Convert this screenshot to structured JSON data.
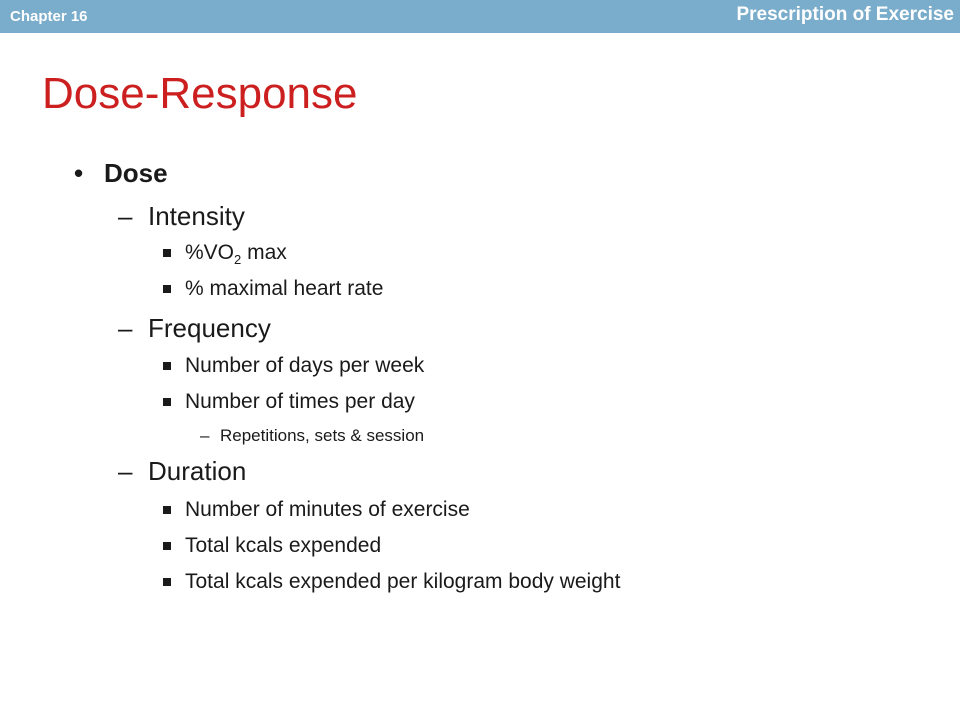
{
  "header": {
    "chapter": "Chapter 16",
    "course_title": "Prescription of Exercise",
    "bar_color": "#7aaccb"
  },
  "slide": {
    "title": "Dose-Response",
    "title_color": "#cc1f1f",
    "bullets": {
      "dose": "Dose",
      "intensity": {
        "label": "Intensity",
        "vo2_prefix": "%VO",
        "vo2_sub": "2",
        "vo2_suffix": " max",
        "hr": "% maximal heart rate"
      },
      "frequency": {
        "label": "Frequency",
        "days": "Number of days per week",
        "times": "Number of times per day",
        "reps": "Repetitions, sets & session"
      },
      "duration": {
        "label": "Duration",
        "minutes": "Number of minutes of exercise",
        "kcals": "Total kcals expended",
        "kcals_kg": "Total kcals expended per kilogram body weight"
      }
    }
  }
}
